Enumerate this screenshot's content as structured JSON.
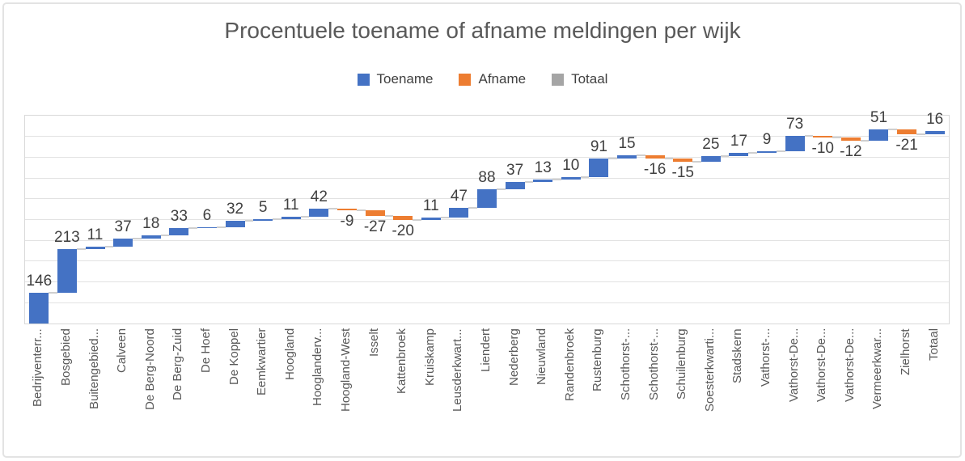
{
  "chart_data": {
    "type": "bar",
    "subtype": "waterfall",
    "title": "Procentuele toename of afname meldingen per wijk",
    "legend": [
      {
        "name": "Toename",
        "color": "#4472c4"
      },
      {
        "name": "Afname",
        "color": "#ed7d31"
      },
      {
        "name": "Totaal",
        "color": "#a5a5a5"
      }
    ],
    "legend_position": "top",
    "grid": true,
    "ylim": [
      0,
      1000
    ],
    "gridline_step": 100,
    "y_axis_labels_visible": false,
    "colors": {
      "increase": "#4472c4",
      "decrease": "#ed7d31",
      "total_swatch": "#a5a5a5",
      "gridline": "#e2e2e2",
      "connector": "#cfcfcf",
      "title_text": "#595959",
      "value_label_text": "#404040",
      "axis_label_text": "#595959"
    },
    "categories": [
      "Bedrijventerr...",
      "Bosgebied",
      "Buitengebied...",
      "Calveen",
      "De Berg-Noord",
      "De Berg-Zuid",
      "De Hoef",
      "De Koppel",
      "Eemkwartier",
      "Hoogland",
      "Hooglanderv...",
      "Hoogland-West",
      "Isselt",
      "Kattenbroek",
      "Kruiskamp",
      "Leusderkwart...",
      "Liendert",
      "Nederberg",
      "Nieuwland",
      "Randenbroek",
      "Rustenburg",
      "Schothorst-...",
      "Schothorst-...",
      "Schuilenburg",
      "Soesterkwarti...",
      "Stadskern",
      "Vathorst-...",
      "Vathorst-De...",
      "Vathorst-De...",
      "Vathorst-De...",
      "Vermeerkwar...",
      "Zielhorst",
      "Totaal"
    ],
    "values": [
      146,
      213,
      11,
      37,
      18,
      33,
      6,
      32,
      5,
      11,
      42,
      -9,
      -27,
      -20,
      11,
      47,
      88,
      37,
      13,
      10,
      91,
      15,
      -16,
      -15,
      25,
      17,
      9,
      73,
      -10,
      -12,
      51,
      -21,
      16
    ]
  }
}
